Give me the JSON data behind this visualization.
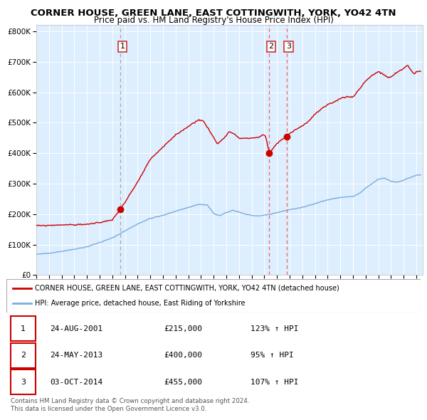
{
  "title": "CORNER HOUSE, GREEN LANE, EAST COTTINGWITH, YORK, YO42 4TN",
  "subtitle": "Price paid vs. HM Land Registry's House Price Index (HPI)",
  "legend_line1": "CORNER HOUSE, GREEN LANE, EAST COTTINGWITH, YORK, YO42 4TN (detached house)",
  "legend_line2": "HPI: Average price, detached house, East Riding of Yorkshire",
  "footer1": "Contains HM Land Registry data © Crown copyright and database right 2024.",
  "footer2": "This data is licensed under the Open Government Licence v3.0.",
  "transactions": [
    {
      "num": 1,
      "date": "24-AUG-2001",
      "price": "£215,000",
      "pct": "123%",
      "dir": "↑"
    },
    {
      "num": 2,
      "date": "24-MAY-2013",
      "price": "£400,000",
      "pct": "95%",
      "dir": "↑"
    },
    {
      "num": 3,
      "date": "03-OCT-2014",
      "price": "£455,000",
      "pct": "107%",
      "dir": "↑"
    }
  ],
  "transaction_dates_decimal": [
    2001.644,
    2013.393,
    2014.752
  ],
  "transaction_prices": [
    215000,
    400000,
    455000
  ],
  "red_color": "#cc0000",
  "blue_color": "#7aacdc",
  "bg_color": "#ddeeff",
  "grid_color": "#ffffff",
  "vline_gray": "#aaaaaa",
  "vline_red": "#ee6666",
  "ylim": [
    0,
    820000
  ],
  "xlim_start": 1995.0,
  "xlim_end": 2025.5,
  "title_fontsize": 9.5,
  "subtitle_fontsize": 8.5,
  "anchors_blue": [
    [
      1995.0,
      68000
    ],
    [
      1996.0,
      72000
    ],
    [
      1997.0,
      78000
    ],
    [
      1998.0,
      85000
    ],
    [
      1999.0,
      93000
    ],
    [
      2000.0,
      107000
    ],
    [
      2001.0,
      122000
    ],
    [
      2002.0,
      145000
    ],
    [
      2003.0,
      168000
    ],
    [
      2004.0,
      186000
    ],
    [
      2005.0,
      196000
    ],
    [
      2006.0,
      210000
    ],
    [
      2007.0,
      222000
    ],
    [
      2007.8,
      232000
    ],
    [
      2008.5,
      230000
    ],
    [
      2009.0,
      202000
    ],
    [
      2009.5,
      195000
    ],
    [
      2010.0,
      205000
    ],
    [
      2010.5,
      213000
    ],
    [
      2011.0,
      207000
    ],
    [
      2011.5,
      200000
    ],
    [
      2012.0,
      196000
    ],
    [
      2012.5,
      193000
    ],
    [
      2013.0,
      197000
    ],
    [
      2013.5,
      200000
    ],
    [
      2014.0,
      205000
    ],
    [
      2014.5,
      210000
    ],
    [
      2015.0,
      215000
    ],
    [
      2016.0,
      222000
    ],
    [
      2017.0,
      235000
    ],
    [
      2018.0,
      247000
    ],
    [
      2019.0,
      255000
    ],
    [
      2020.0,
      258000
    ],
    [
      2020.5,
      268000
    ],
    [
      2021.0,
      285000
    ],
    [
      2022.0,
      315000
    ],
    [
      2022.5,
      318000
    ],
    [
      2023.0,
      308000
    ],
    [
      2023.5,
      305000
    ],
    [
      2024.0,
      312000
    ],
    [
      2025.0,
      328000
    ]
  ],
  "anchors_red": [
    [
      1995.0,
      162000
    ],
    [
      1996.0,
      163000
    ],
    [
      1997.0,
      165000
    ],
    [
      1998.0,
      165000
    ],
    [
      1999.0,
      167000
    ],
    [
      2000.0,
      172000
    ],
    [
      2001.0,
      182000
    ],
    [
      2001.644,
      215000
    ],
    [
      2002.0,
      240000
    ],
    [
      2003.0,
      305000
    ],
    [
      2004.0,
      380000
    ],
    [
      2005.0,
      420000
    ],
    [
      2006.0,
      460000
    ],
    [
      2007.0,
      488000
    ],
    [
      2007.8,
      510000
    ],
    [
      2008.2,
      505000
    ],
    [
      2008.7,
      472000
    ],
    [
      2009.3,
      430000
    ],
    [
      2009.8,
      450000
    ],
    [
      2010.2,
      470000
    ],
    [
      2010.6,
      465000
    ],
    [
      2011.0,
      450000
    ],
    [
      2011.5,
      448000
    ],
    [
      2012.0,
      450000
    ],
    [
      2012.5,
      452000
    ],
    [
      2012.9,
      460000
    ],
    [
      2013.1,
      455000
    ],
    [
      2013.393,
      400000
    ],
    [
      2013.6,
      410000
    ],
    [
      2013.9,
      428000
    ],
    [
      2014.3,
      442000
    ],
    [
      2014.752,
      455000
    ],
    [
      2015.0,
      465000
    ],
    [
      2015.5,
      478000
    ],
    [
      2016.0,
      490000
    ],
    [
      2016.5,
      505000
    ],
    [
      2017.0,
      528000
    ],
    [
      2017.5,
      545000
    ],
    [
      2018.0,
      558000
    ],
    [
      2018.5,
      568000
    ],
    [
      2019.0,
      580000
    ],
    [
      2019.5,
      585000
    ],
    [
      2020.0,
      585000
    ],
    [
      2020.5,
      610000
    ],
    [
      2021.0,
      638000
    ],
    [
      2021.5,
      655000
    ],
    [
      2022.0,
      668000
    ],
    [
      2022.3,
      660000
    ],
    [
      2022.8,
      648000
    ],
    [
      2023.0,
      650000
    ],
    [
      2023.3,
      660000
    ],
    [
      2023.6,
      668000
    ],
    [
      2024.0,
      678000
    ],
    [
      2024.3,
      690000
    ],
    [
      2024.6,
      670000
    ],
    [
      2024.8,
      660000
    ],
    [
      2025.0,
      668000
    ]
  ]
}
